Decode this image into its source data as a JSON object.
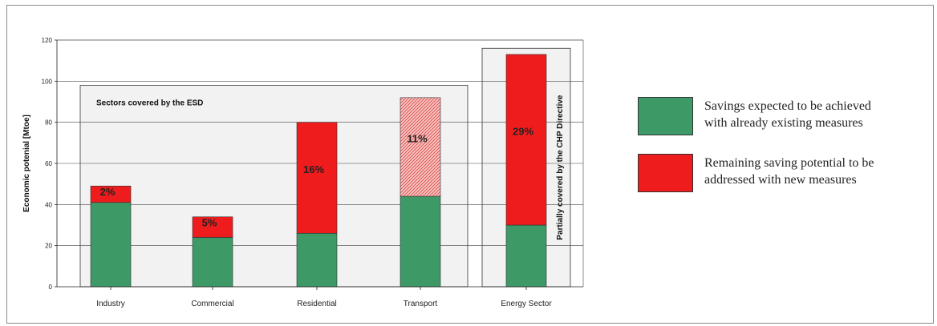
{
  "colors": {
    "existing": "#3d9a66",
    "remaining": "#ee1c1c",
    "hatch_light": "#f6c9c9",
    "hatch_dark": "#e0544f",
    "panel": "#f2f2f2"
  },
  "legend": [
    {
      "key": "existing",
      "label_line1": "Savings expected to be achieved",
      "label_line2": "with already existing measures"
    },
    {
      "key": "remaining",
      "label_line1": "Remaining saving potential to be",
      "label_line2": "addressed with new measures"
    }
  ],
  "chart_data": {
    "type": "bar",
    "stacked": true,
    "ylabel": "Economic potenial [Mtoe]",
    "ylim": [
      0,
      120
    ],
    "yticks": [
      0,
      20,
      40,
      60,
      80,
      100,
      120
    ],
    "grid": true,
    "categories": [
      "Industry",
      "Commercial",
      "Residential",
      "Transport",
      "Energy Sector"
    ],
    "series": [
      {
        "key": "existing",
        "values": [
          41,
          24,
          26,
          44,
          30
        ]
      },
      {
        "key": "remaining",
        "values": [
          8,
          10,
          54,
          48,
          83
        ],
        "labels": [
          "2%",
          "5%",
          "16%",
          "11%",
          "29%"
        ],
        "hatched": [
          false,
          false,
          false,
          true,
          false
        ]
      }
    ],
    "annotations": {
      "esd_box": {
        "text": "Sectors covered by the ESD",
        "categories": [
          "Industry",
          "Commercial",
          "Residential",
          "Transport"
        ],
        "top": 98
      },
      "chp_box": {
        "text": "Partially covered by the CHP Directive",
        "categories": [
          "Energy Sector"
        ],
        "top": 116
      }
    }
  }
}
